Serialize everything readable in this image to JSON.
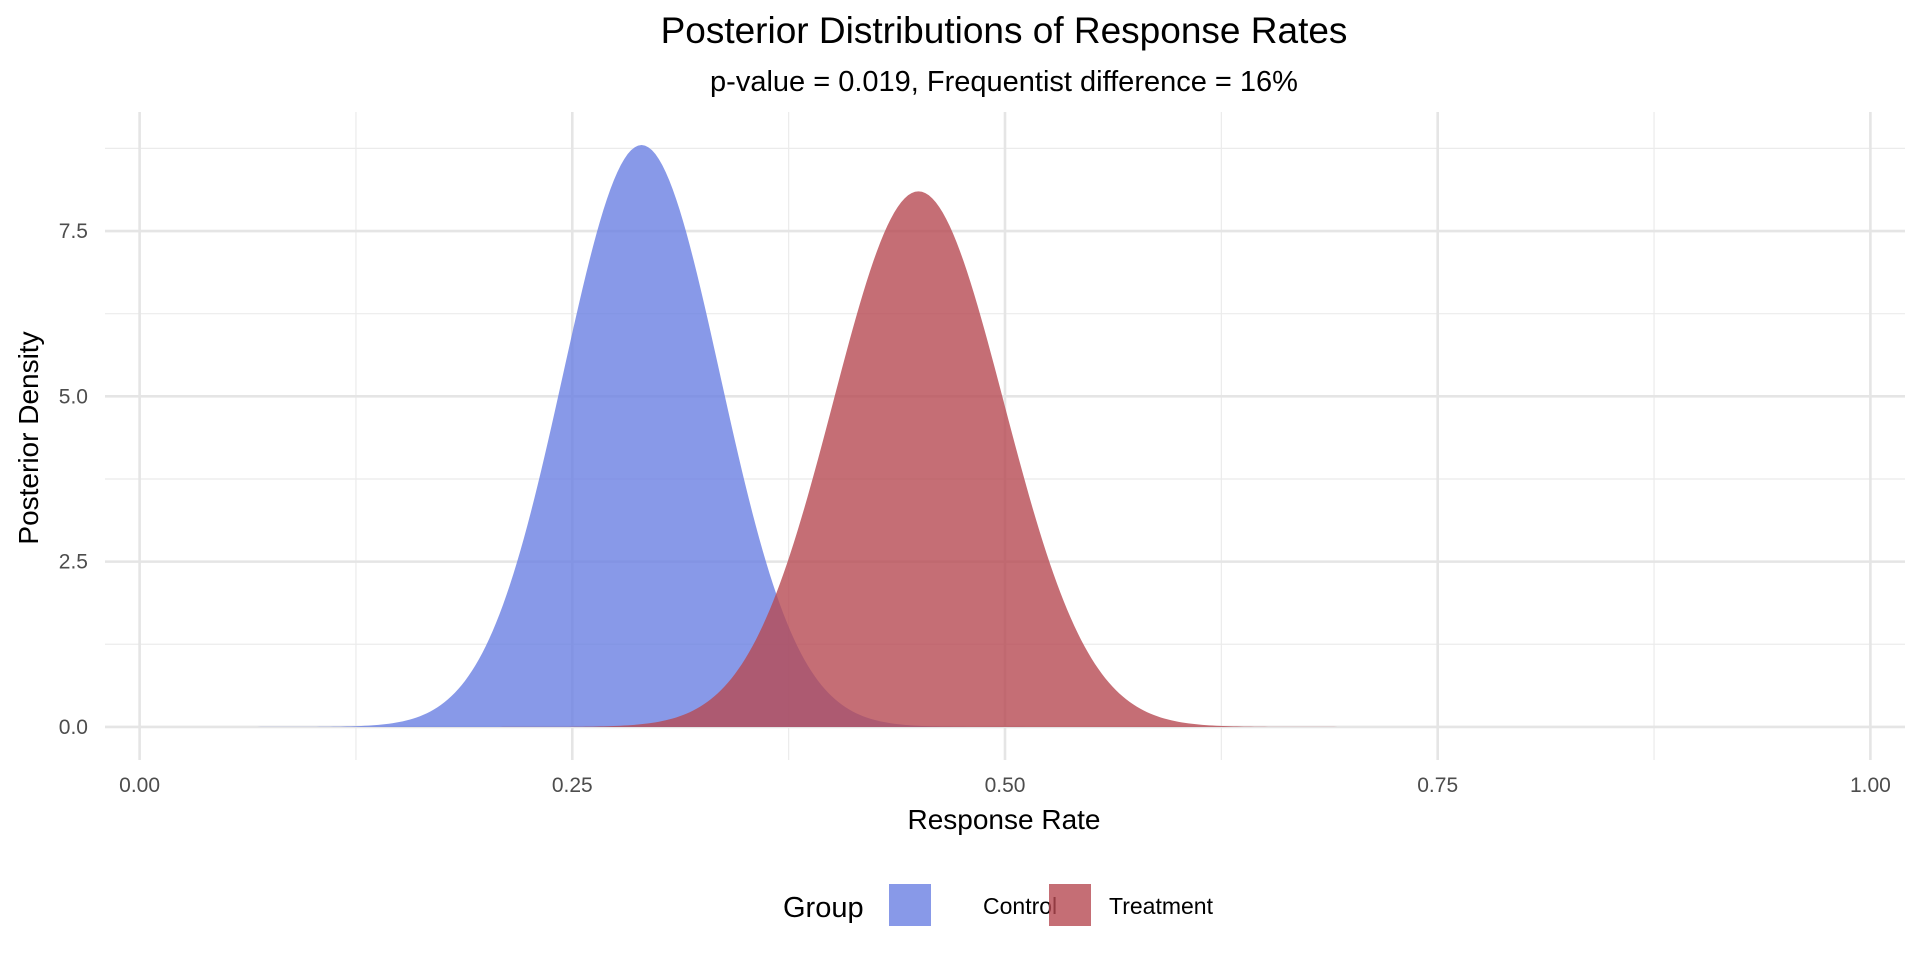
{
  "chart_data": {
    "type": "area",
    "title": "Posterior Distributions of Response Rates",
    "subtitle": "p-value = 0.019, Frequentist difference = 16%",
    "xlabel": "Response Rate",
    "ylabel": "Posterior Density",
    "xlim": [
      -0.02,
      1.02
    ],
    "ylim": [
      -0.5,
      9.3
    ],
    "x_ticks": [
      0.0,
      0.25,
      0.5,
      0.75,
      1.0
    ],
    "x_tick_labels": [
      "0.00",
      "0.25",
      "0.50",
      "0.75",
      "1.00"
    ],
    "y_ticks": [
      0.0,
      2.5,
      5.0,
      7.5
    ],
    "y_tick_labels": [
      "0.0",
      "2.5",
      "5.0",
      "7.5"
    ],
    "grid": true,
    "legend": {
      "title": "Group",
      "position": "bottom"
    },
    "series": [
      {
        "name": "Control",
        "color": "#6A7FE2",
        "distribution": "normal",
        "mean": 0.29,
        "sd": 0.0453,
        "peak_density": 8.8
      },
      {
        "name": "Treatment",
        "color": "#B74A53",
        "distribution": "normal",
        "mean": 0.45,
        "sd": 0.0493,
        "peak_density": 8.1
      }
    ]
  }
}
